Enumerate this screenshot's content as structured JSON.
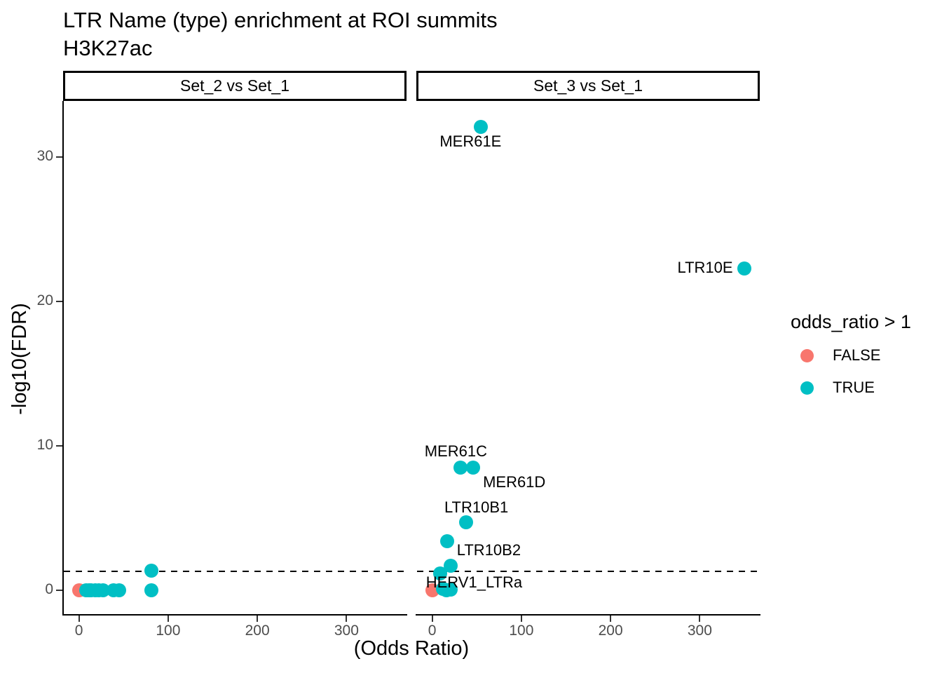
{
  "chart_data": {
    "type": "scatter",
    "title": "LTR Name (type) enrichment at ROI summits",
    "subtitle": "H3K27ac",
    "xlabel": "(Odds Ratio)",
    "ylabel": "-log10(FDR)",
    "x_ticks": [
      0,
      100,
      200,
      300
    ],
    "y_ticks": [
      0,
      10,
      20,
      30
    ],
    "xlim": [
      -17,
      366.5
    ],
    "ylim": [
      -1.65,
      33.8
    ],
    "grid": false,
    "threshold_line_y": 1.3,
    "threshold_line_style": "dashed",
    "legend_position": "right",
    "legend": {
      "title": "odds_ratio > 1",
      "items": [
        {
          "label": "FALSE",
          "color": "#F8766D"
        },
        {
          "label": "TRUE",
          "color": "#00BFC4"
        }
      ]
    },
    "facets": [
      {
        "label": "Set_2 vs Set_1",
        "series": [
          {
            "name": "FALSE",
            "color": "#F8766D",
            "points": [
              [
                0.3,
                0
              ]
            ]
          },
          {
            "name": "TRUE",
            "color": "#00BFC4",
            "points": [
              [
                8,
                0
              ],
              [
                11,
                0
              ],
              [
                14,
                0
              ],
              [
                18,
                0
              ],
              [
                22,
                0
              ],
              [
                27,
                0
              ],
              [
                39,
                0
              ],
              [
                45,
                0
              ],
              [
                81,
                1.35
              ],
              [
                81,
                0
              ]
            ]
          }
        ],
        "point_labels": []
      },
      {
        "label": "Set_3 vs Set_1",
        "series": [
          {
            "name": "FALSE",
            "color": "#F8766D",
            "points": [
              [
                0.3,
                0
              ]
            ]
          },
          {
            "name": "TRUE",
            "color": "#00BFC4",
            "points": [
              [
                8.6,
                1.15
              ],
              [
                11.8,
                0.1
              ],
              [
                16,
                0
              ],
              [
                21,
                0.05
              ],
              [
                20.5,
                1.7
              ],
              [
                16.5,
                3.4
              ],
              [
                37.7,
                4.7
              ],
              [
                31.4,
                8.5
              ],
              [
                45.6,
                8.5
              ],
              [
                54.2,
                32.1
              ],
              [
                350,
                22.3
              ]
            ]
          }
        ],
        "point_labels": [
          {
            "text": "MER61E",
            "x": 43,
            "y": 31.1
          },
          {
            "text": "LTR10E",
            "x": 306,
            "y": 22.35
          },
          {
            "text": "MER61C",
            "x": 26.5,
            "y": 9.6
          },
          {
            "text": "MER61D",
            "x": 92,
            "y": 7.5
          },
          {
            "text": "LTR10B1",
            "x": 49.5,
            "y": 5.75
          },
          {
            "text": "LTR10B2",
            "x": 63.5,
            "y": 2.75
          },
          {
            "text": "HERV1_LTRa",
            "x": 47,
            "y": 0.55
          }
        ]
      }
    ],
    "colors": {
      "axis_text": "#4d4d4d",
      "axis_line": "#000000",
      "false_group": "#F8766D",
      "true_group": "#00BFC4"
    }
  }
}
